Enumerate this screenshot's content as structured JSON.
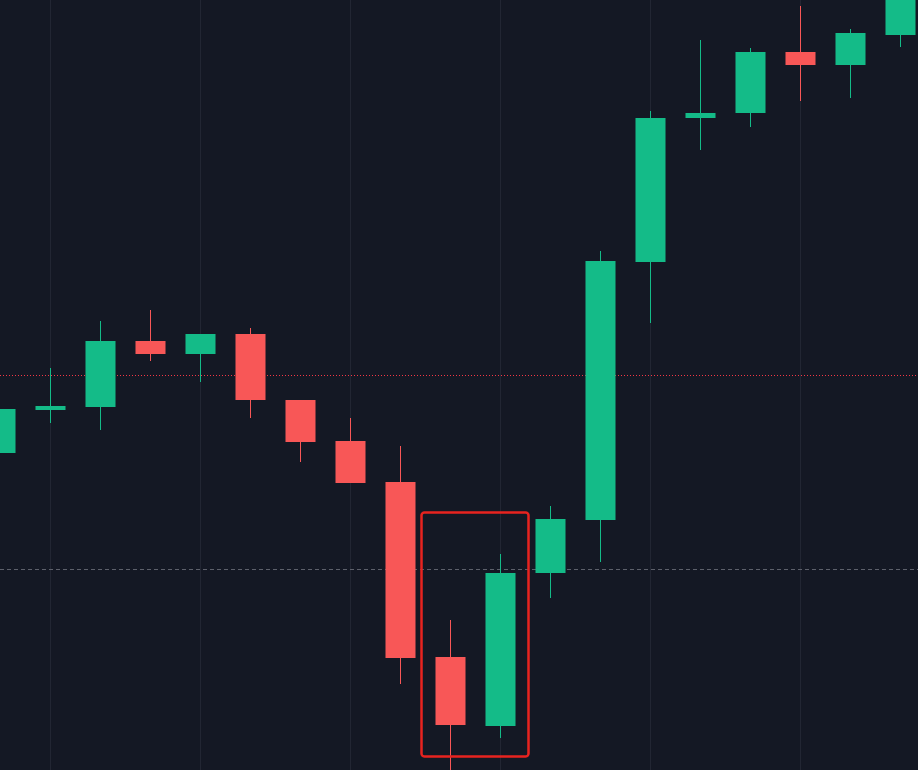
{
  "chart_data": {
    "type": "candlestick",
    "categories": [
      null,
      null,
      null,
      null,
      null,
      null,
      null,
      null,
      null,
      null,
      null,
      null,
      null,
      null,
      null,
      null,
      null,
      null,
      null
    ],
    "open": [
      317,
      360,
      363,
      429,
      416,
      436,
      370,
      329,
      288,
      113,
      44,
      197,
      250,
      508,
      652,
      657,
      718,
      705,
      735
    ],
    "high": [
      361,
      402,
      449,
      460,
      436,
      442,
      370,
      352,
      324,
      150,
      216,
      264,
      519,
      659,
      730,
      722,
      764,
      741,
      770
    ],
    "low": [
      317,
      347,
      340,
      409,
      388,
      352,
      308,
      287,
      86,
      0,
      32,
      172,
      208,
      447,
      620,
      643,
      669,
      672,
      723
    ],
    "close": [
      361,
      364,
      429,
      416,
      436,
      370,
      328,
      287,
      112,
      45,
      197,
      251,
      509,
      652,
      657,
      718,
      705,
      737,
      770
    ],
    "up_color": "#14bb88",
    "down_color": "#f85757",
    "ylim": [
      0,
      770
    ],
    "price_lines": [
      {
        "value": 395,
        "color": "#f23645",
        "style": "dotted"
      },
      {
        "value": 201,
        "color": "#5d606b",
        "style": "dashed"
      }
    ]
  }
}
